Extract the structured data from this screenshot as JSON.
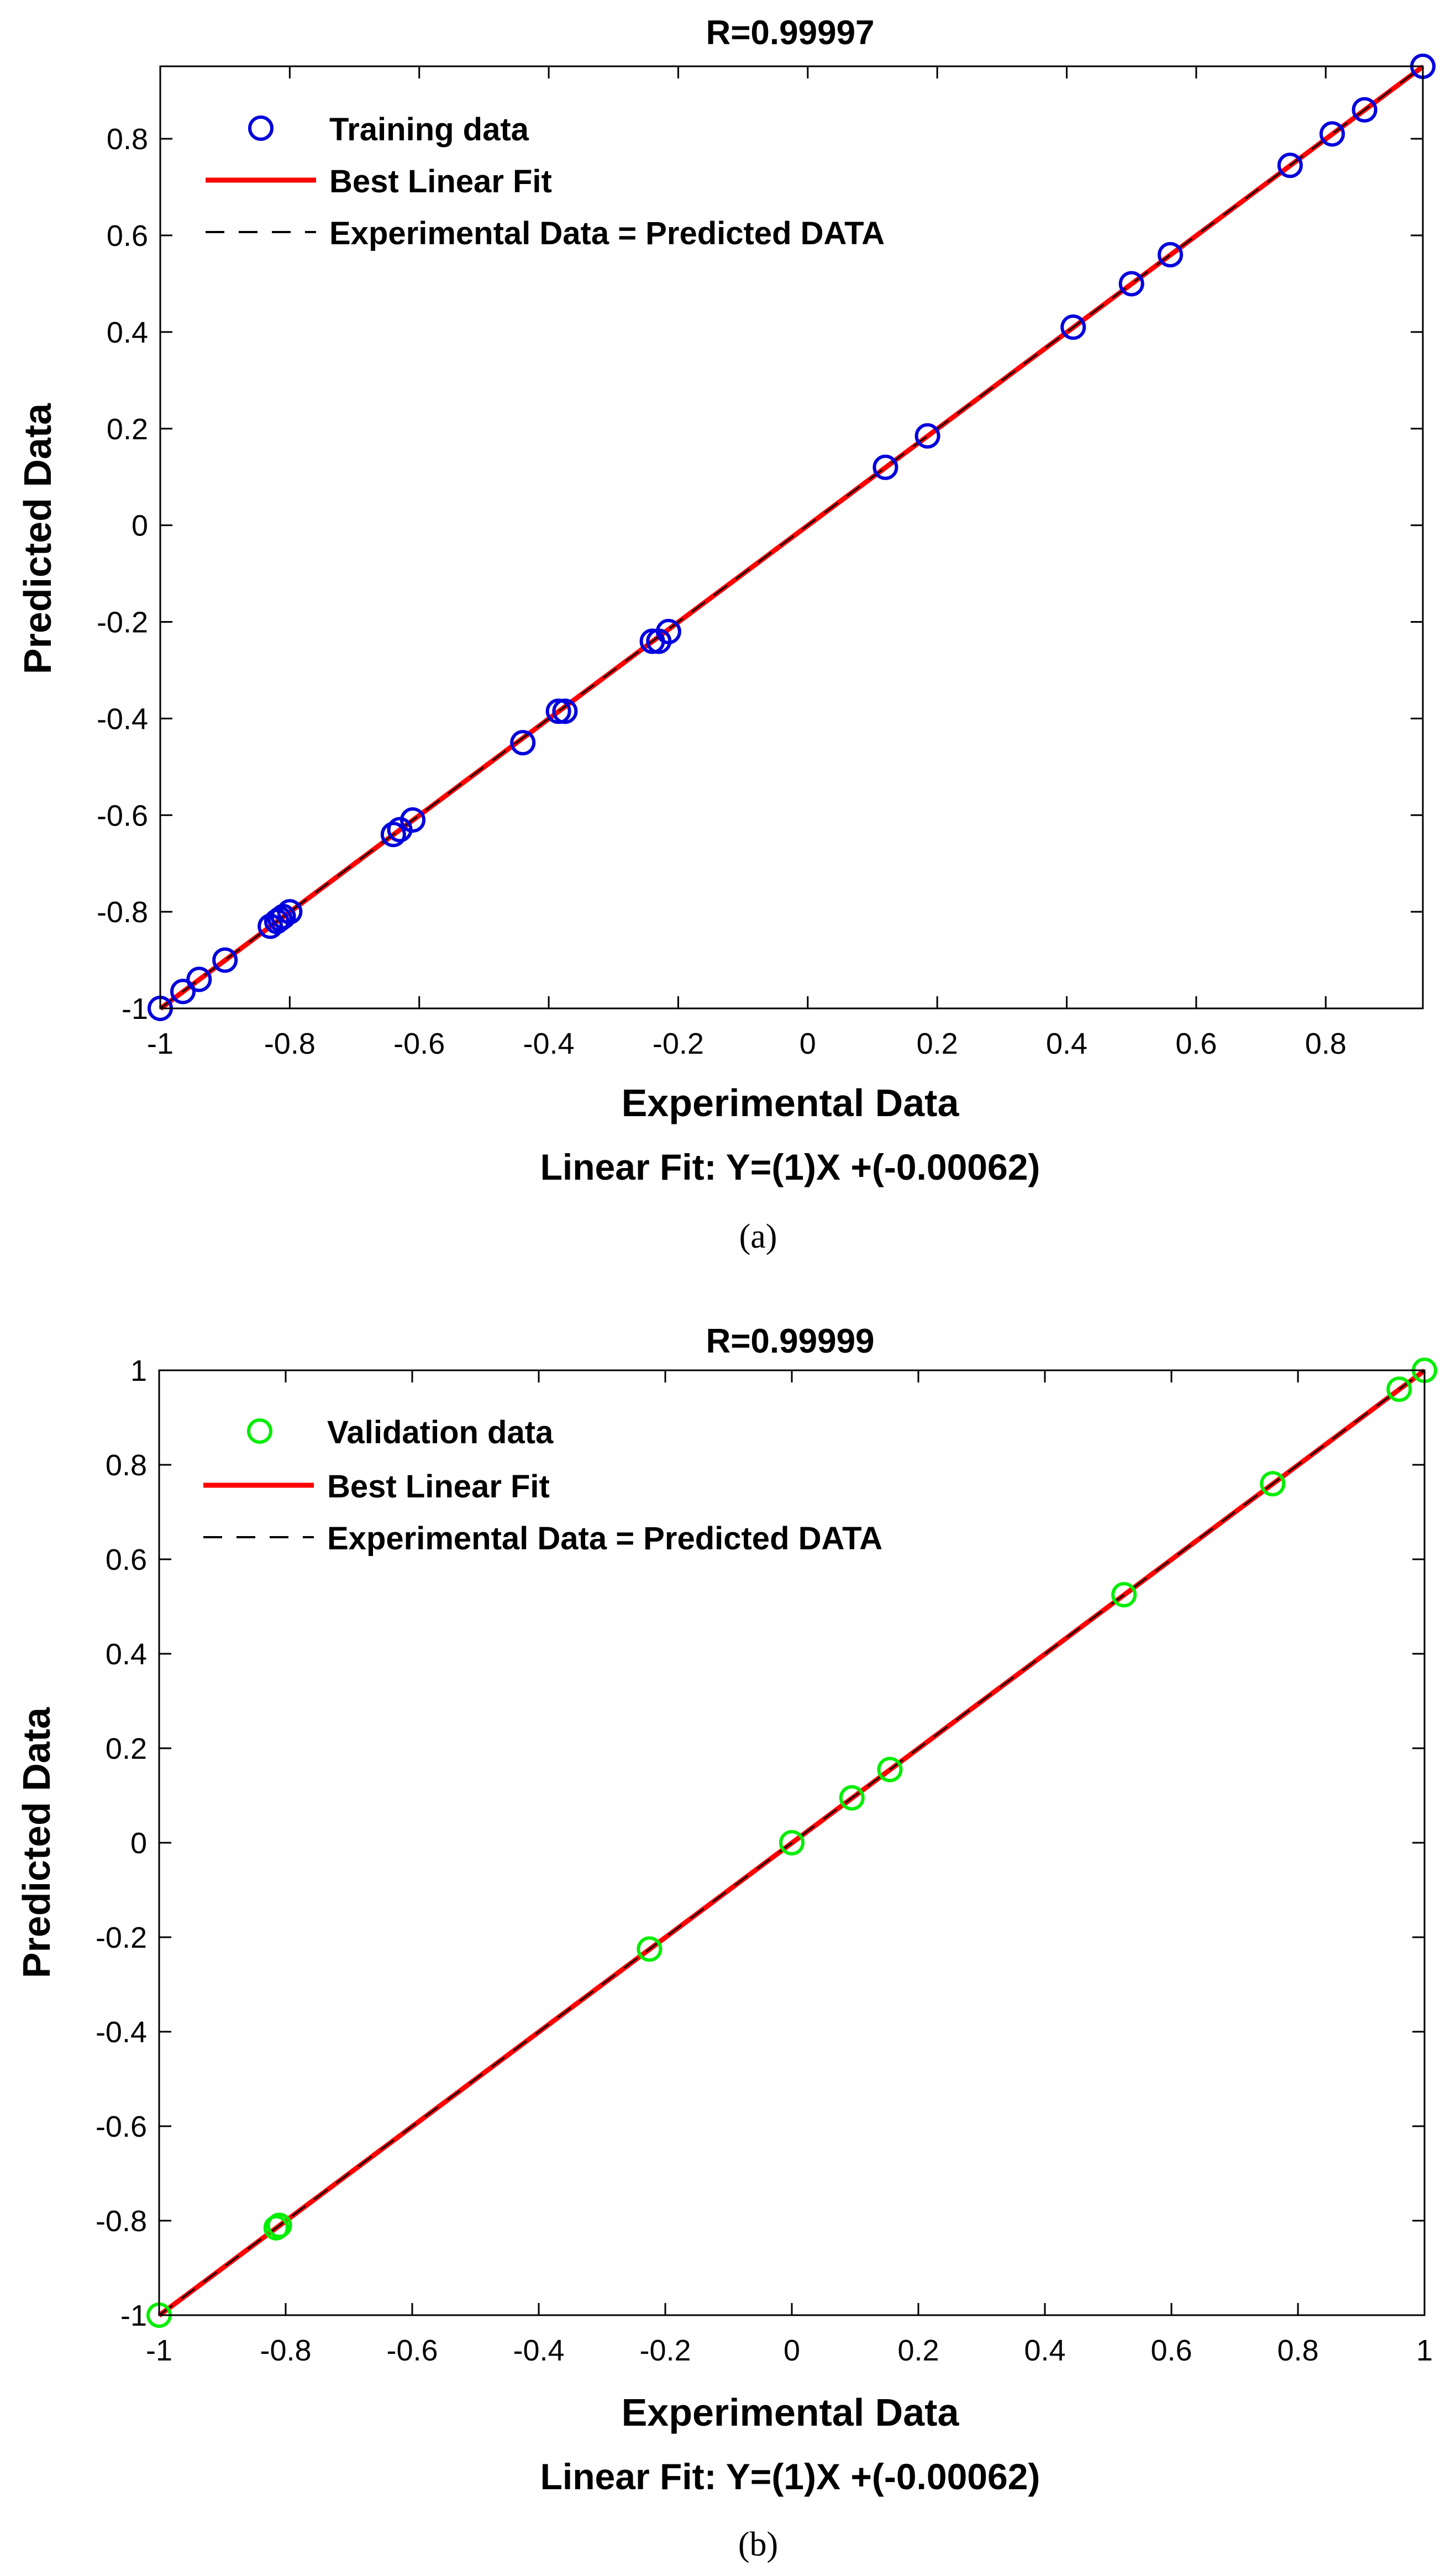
{
  "chart_data": [
    {
      "type": "scatter",
      "panel_label": "(a)",
      "title": "R=0.99997",
      "xlabel": "Experimental Data",
      "ylabel": "Predicted Data",
      "fit_text": "Linear Fit: Y=(1)X +(-0.00062)",
      "xlim": [
        -1,
        0.95
      ],
      "ylim": [
        -1,
        0.95
      ],
      "xticks": [
        -1,
        -0.8,
        -0.6,
        -0.4,
        -0.2,
        0,
        0.2,
        0.4,
        0.6,
        0.8
      ],
      "xtick_labels": [
        "-1",
        "-0.8",
        "-0.6",
        "-0.4",
        "-0.2",
        "0",
        "0.2",
        "0.4",
        "0.6",
        "0.8"
      ],
      "yticks": [
        -1,
        -0.8,
        -0.6,
        -0.4,
        -0.2,
        0,
        0.2,
        0.4,
        0.6,
        0.8
      ],
      "ytick_labels": [
        "-1",
        "-0.8",
        "-0.6",
        "-0.4",
        "-0.2",
        "0",
        "0.2",
        "0.4",
        "0.6",
        "0.8"
      ],
      "legend": {
        "position": "top-left",
        "entries": [
          "Training data",
          "Best Linear Fit",
          "Experimental Data = Predicted DATA"
        ]
      },
      "marker_color": "#0000dd",
      "fit_color": "#ff0000",
      "identity_color": "#000000",
      "fit": {
        "slope": 1,
        "intercept": -0.00062
      },
      "series": [
        {
          "name": "Training data",
          "x": [
            -1.0,
            -0.965,
            -0.94,
            -0.9,
            -0.83,
            -0.82,
            -0.815,
            -0.81,
            -0.8,
            -0.64,
            -0.63,
            -0.61,
            -0.44,
            -0.385,
            -0.375,
            -0.24,
            -0.23,
            -0.215,
            0.12,
            0.185,
            0.41,
            0.5,
            0.56,
            0.745,
            0.81,
            0.86,
            0.95
          ],
          "y": [
            -1.0,
            -0.965,
            -0.94,
            -0.9,
            -0.83,
            -0.82,
            -0.815,
            -0.81,
            -0.8,
            -0.64,
            -0.63,
            -0.61,
            -0.45,
            -0.385,
            -0.385,
            -0.24,
            -0.24,
            -0.22,
            0.12,
            0.185,
            0.41,
            0.5,
            0.56,
            0.745,
            0.81,
            0.86,
            0.95
          ]
        }
      ]
    },
    {
      "type": "scatter",
      "panel_label": "(b)",
      "title": "R=0.99999",
      "xlabel": "Experimental Data",
      "ylabel": "Predicted Data",
      "fit_text": "Linear Fit: Y=(1)X +(-0.00062)",
      "xlim": [
        -1,
        1
      ],
      "ylim": [
        -1,
        1
      ],
      "xticks": [
        -1,
        -0.8,
        -0.6,
        -0.4,
        -0.2,
        0,
        0.2,
        0.4,
        0.6,
        0.8,
        1
      ],
      "xtick_labels": [
        "-1",
        "-0.8",
        "-0.6",
        "-0.4",
        "-0.2",
        "0",
        "0.2",
        "0.4",
        "0.6",
        "0.8",
        "1"
      ],
      "yticks": [
        -1,
        -0.8,
        -0.6,
        -0.4,
        -0.2,
        0,
        0.2,
        0.4,
        0.6,
        0.8,
        1
      ],
      "ytick_labels": [
        "-1",
        "-0.8",
        "-0.6",
        "-0.4",
        "-0.2",
        "0",
        "0.2",
        "0.4",
        "0.6",
        "0.8",
        "1"
      ],
      "legend": {
        "position": "top-left",
        "entries": [
          "Validation data",
          "Best Linear Fit",
          "Experimental Data = Predicted DATA"
        ]
      },
      "marker_color": "#00ee00",
      "fit_color": "#ff0000",
      "identity_color": "#000000",
      "fit": {
        "slope": 1,
        "intercept": -0.00062
      },
      "series": [
        {
          "name": "Validation data",
          "x": [
            -1.0,
            -0.815,
            -0.81,
            -0.225,
            0.0,
            0.095,
            0.155,
            0.525,
            0.76,
            0.96,
            1.0
          ],
          "y": [
            -1.0,
            -0.815,
            -0.81,
            -0.225,
            0.0,
            0.095,
            0.155,
            0.525,
            0.76,
            0.96,
            1.0
          ]
        }
      ]
    }
  ]
}
